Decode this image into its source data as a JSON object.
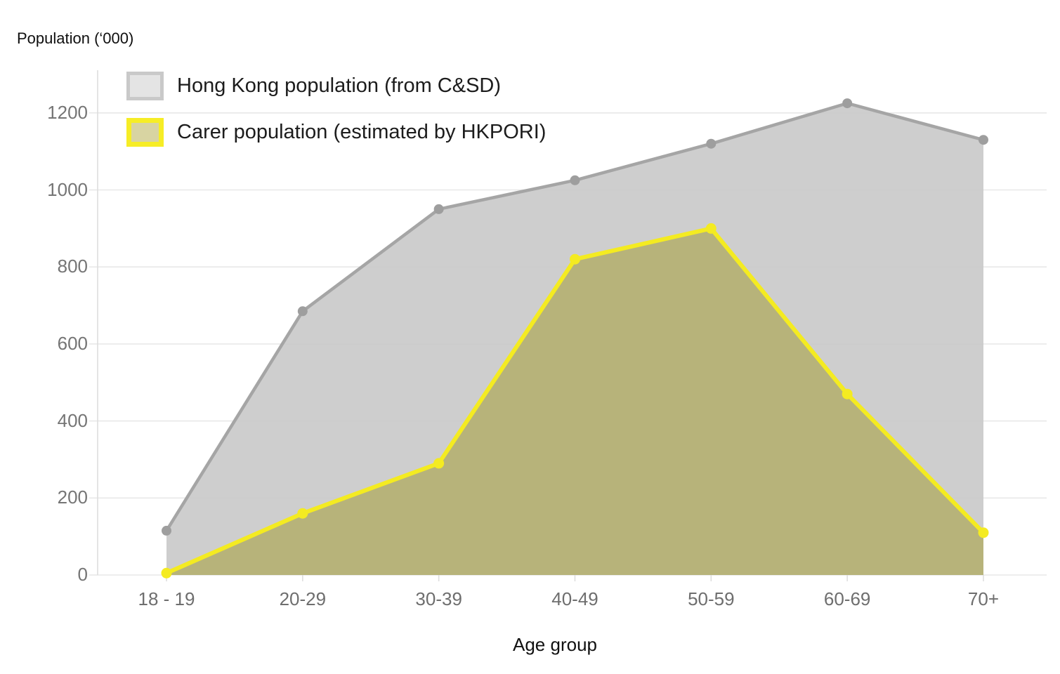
{
  "title": "Population (‘000)",
  "xlabel": "Age group",
  "legend": [
    {
      "label": "Hong Kong population (from C&SD)"
    },
    {
      "label": "Carer population (estimated by HKPORI)"
    }
  ],
  "colors": {
    "gridline": "#e8e8e8",
    "axis_line": "#dedede",
    "y_tick_text": "#757575",
    "x_tick_text": "#6e6e6e",
    "title_text": "#0f0f0f",
    "hk_line": "#a5a5a5",
    "hk_fill": "#c9c9c9",
    "hk_marker": "#9e9e9e",
    "carer_line": "#f4eb21",
    "carer_fill": "#b3ae6b",
    "carer_marker": "#f4eb21",
    "legend_hk_swatch_fill": "#e4e4e4",
    "legend_hk_swatch_border": "#c9c9c9",
    "legend_carer_swatch_fill": "#d8d4a2",
    "legend_carer_swatch_border": "#f6ed26"
  },
  "chart_data": {
    "type": "area",
    "title": "Population (‘000)",
    "xlabel": "Age group",
    "ylabel": "Population (‘000)",
    "categories": [
      "18 - 19",
      "20-29",
      "30-39",
      "40-49",
      "50-59",
      "60-69",
      "70+"
    ],
    "series": [
      {
        "name": "Hong Kong population (from C&SD)",
        "values": [
          115,
          685,
          950,
          1025,
          1120,
          1225,
          1130
        ],
        "line_color": "#a5a5a5",
        "fill_color": "#c9c9c9",
        "fill_opacity": 0.9,
        "marker_color": "#9e9e9e"
      },
      {
        "name": "Carer population (estimated by HKPORI)",
        "values": [
          5,
          160,
          290,
          820,
          900,
          470,
          110
        ],
        "line_color": "#f4eb21",
        "fill_color": "#b3ae6b",
        "fill_opacity": 0.85,
        "marker_color": "#f4eb21"
      }
    ],
    "yticks": [
      0,
      200,
      400,
      600,
      800,
      1000,
      1200
    ],
    "ylim": [
      0,
      1310
    ],
    "grid": "horizontal",
    "legend_position": "top-left"
  }
}
